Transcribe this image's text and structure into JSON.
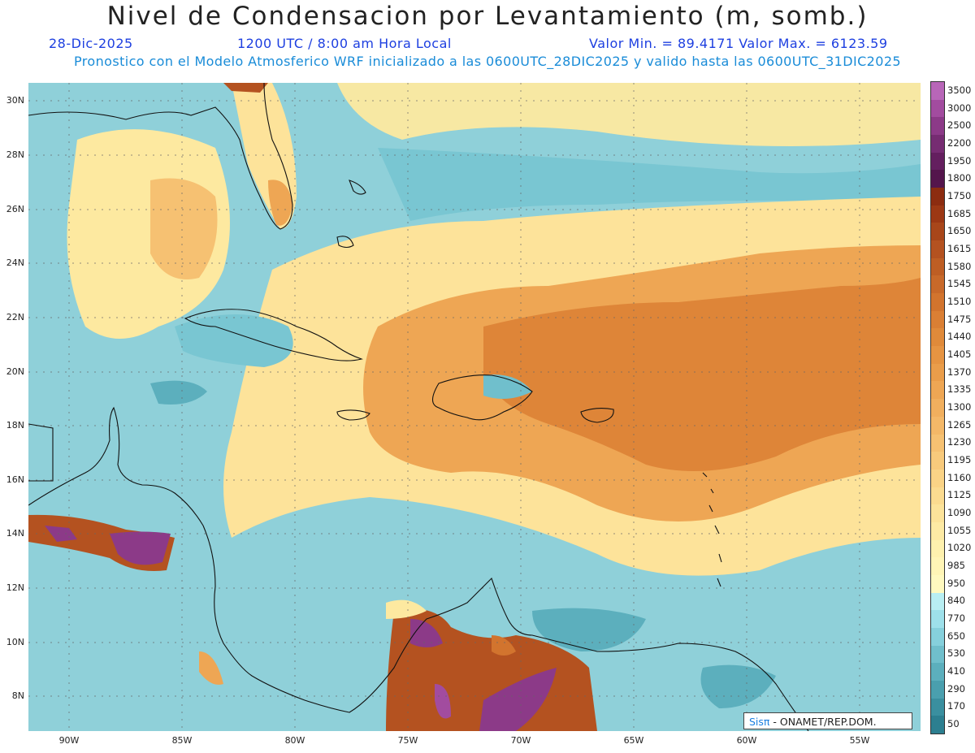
{
  "title": "Nivel de Condensacion por Levantamiento (m, somb.)",
  "date": "28-Dic-2025",
  "time": "1200 UTC / 8:00 am Hora Local",
  "value_range": "Valor Min. = 89.4171   Valor Max. = 6123.59",
  "forecast_info": "Pronostico con el Modelo Atmosferico WRF inicializado a las 0600UTC_28DIC2025 y valido hasta las  0600UTC_31DIC2025",
  "lat_labels": [
    "30N",
    "28N",
    "26N",
    "24N",
    "22N",
    "20N",
    "18N",
    "16N",
    "14N",
    "12N",
    "10N",
    "8N"
  ],
  "lon_labels": [
    "90W",
    "85W",
    "80W",
    "75W",
    "70W",
    "65W",
    "60W",
    "55W"
  ],
  "colorbar": [
    {
      "label": "3500",
      "color": "#b866b8"
    },
    {
      "label": "3000",
      "color": "#a24c9f"
    },
    {
      "label": "2500",
      "color": "#8c3a88"
    },
    {
      "label": "2200",
      "color": "#762c72"
    },
    {
      "label": "1950",
      "color": "#641f5f"
    },
    {
      "label": "1800",
      "color": "#54154c"
    },
    {
      "label": "1750",
      "color": "#8c2c10"
    },
    {
      "label": "1685",
      "color": "#9c3814"
    },
    {
      "label": "1650",
      "color": "#a8461a"
    },
    {
      "label": "1615",
      "color": "#b45220"
    },
    {
      "label": "1580",
      "color": "#be5e24"
    },
    {
      "label": "1545",
      "color": "#c8692a"
    },
    {
      "label": "1510",
      "color": "#d2742e"
    },
    {
      "label": "1475",
      "color": "#da7f34"
    },
    {
      "label": "1440",
      "color": "#e08a3a"
    },
    {
      "label": "1405",
      "color": "#e69442"
    },
    {
      "label": "1370",
      "color": "#ea9d4a"
    },
    {
      "label": "1335",
      "color": "#eea654"
    },
    {
      "label": "1300",
      "color": "#f1af5e"
    },
    {
      "label": "1265",
      "color": "#f4b868"
    },
    {
      "label": "1230",
      "color": "#f6c172"
    },
    {
      "label": "1195",
      "color": "#f8ca7c"
    },
    {
      "label": "1160",
      "color": "#fad386"
    },
    {
      "label": "1125",
      "color": "#fbdb90"
    },
    {
      "label": "1090",
      "color": "#fce39a"
    },
    {
      "label": "1055",
      "color": "#fdeaa4"
    },
    {
      "label": "1020",
      "color": "#fef1ae"
    },
    {
      "label": "985",
      "color": "#fff5b6"
    },
    {
      "label": "950",
      "color": "#fff9bf"
    },
    {
      "label": "840",
      "color": "#b8eef2"
    },
    {
      "label": "770",
      "color": "#9ee0ea"
    },
    {
      "label": "650",
      "color": "#86d0dc"
    },
    {
      "label": "530",
      "color": "#70bfcc"
    },
    {
      "label": "410",
      "color": "#5cafbd"
    },
    {
      "label": "290",
      "color": "#4a9fae"
    },
    {
      "label": "170",
      "color": "#3a8f9f"
    },
    {
      "label": "50",
      "color": "#2c7f90"
    }
  ],
  "credit_logo": "Sisπ",
  "credit_text": " - ONAMET/REP.DOM."
}
